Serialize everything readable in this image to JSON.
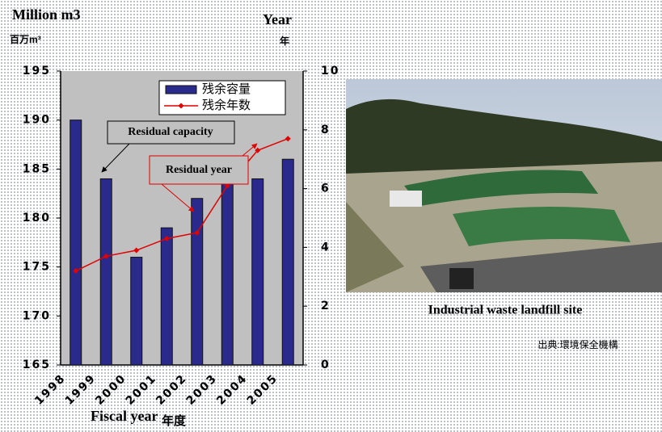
{
  "chart_data": {
    "type": "bar",
    "ylabel": [
      "Million m3",
      "百万m³"
    ],
    "y2label": [
      "Year",
      "年"
    ],
    "xlabel": [
      "Fiscal year",
      "年度"
    ],
    "annotations": [
      "Residual capacity",
      "Residual year"
    ],
    "categories": [
      "1998",
      "1999",
      "2000",
      "2001",
      "2002",
      "2003",
      "2004",
      "2005"
    ],
    "series": [
      {
        "name": "残余容量",
        "type": "bar",
        "color": "#2a2a8c",
        "values": [
          190,
          184,
          176,
          179,
          182,
          184,
          184,
          186
        ]
      },
      {
        "name": "残余年数",
        "type": "line",
        "axis": "y2",
        "color": "#e00000",
        "values": [
          3.2,
          3.7,
          3.9,
          4.3,
          4.5,
          6.1,
          7.3,
          7.7
        ]
      }
    ],
    "ylim": [
      165,
      195
    ],
    "yticks": [
      165,
      170,
      175,
      180,
      185,
      190,
      195
    ],
    "y2lim": [
      0,
      10
    ],
    "y2ticks": [
      0,
      2,
      4,
      6,
      8,
      10
    ],
    "legend": "upper right",
    "grid": false
  },
  "photo": {
    "caption": "Industrial waste landfill site"
  },
  "source": "出典:環境保全機構"
}
